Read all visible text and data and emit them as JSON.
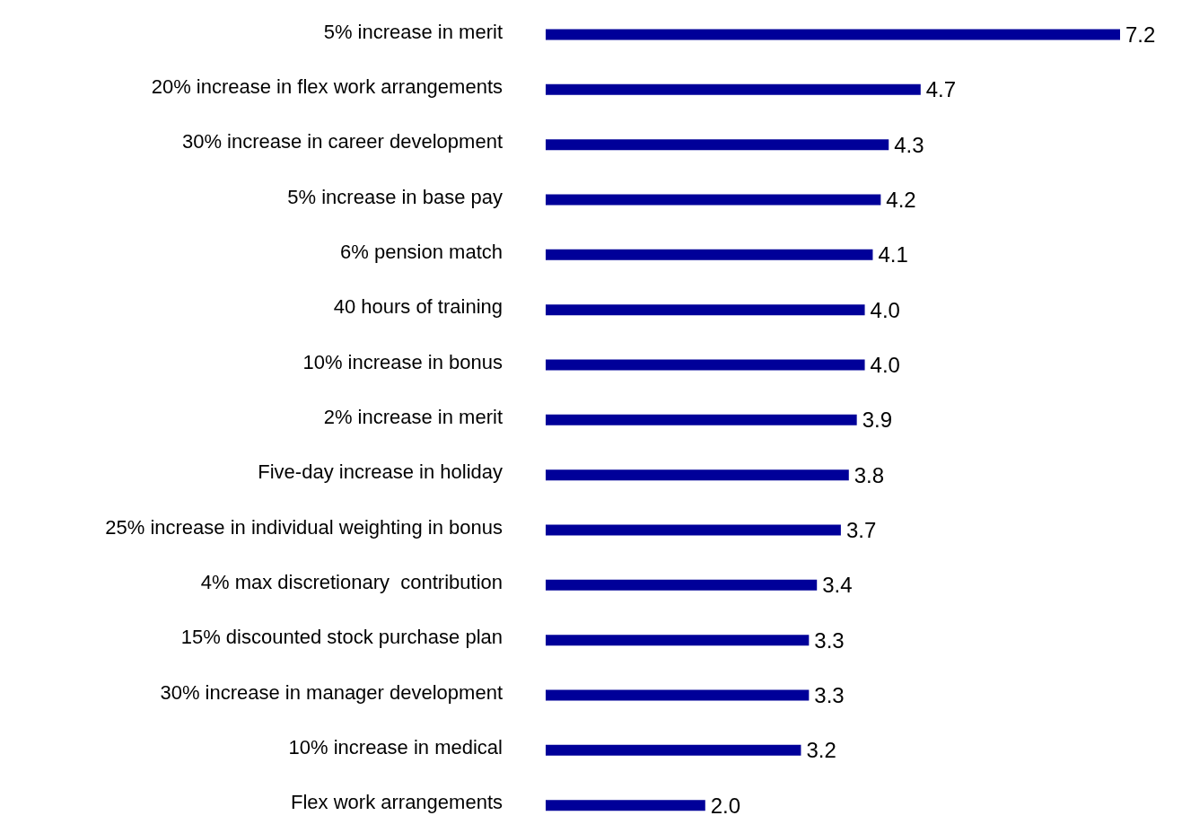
{
  "chart_data": {
    "type": "bar",
    "orientation": "horizontal",
    "categories": [
      "5% increase in merit",
      "20% increase in flex work arrangements",
      "30% increase in career development",
      "5% increase in base pay",
      "6% pension match",
      "40 hours of training",
      "10% increase in bonus",
      "2% increase in merit",
      "Five-day increase in holiday",
      "25% increase in individual weighting in bonus",
      "4% max discretionary  contribution",
      "15% discounted stock purchase plan",
      "30% increase in manager development",
      "10% increase in medical",
      "Flex work arrangements"
    ],
    "values": [
      7.2,
      4.7,
      4.3,
      4.2,
      4.1,
      4.0,
      4.0,
      3.9,
      3.8,
      3.7,
      3.4,
      3.3,
      3.3,
      3.2,
      2.0
    ],
    "value_labels": [
      "7.2",
      "4.7",
      "4.3",
      "4.2",
      "4.1",
      "4.0",
      "4.0",
      "3.9",
      "3.8",
      "3.7",
      "3.4",
      "3.3",
      "3.3",
      "3.2",
      "2.0"
    ],
    "color": "#000099"
  }
}
